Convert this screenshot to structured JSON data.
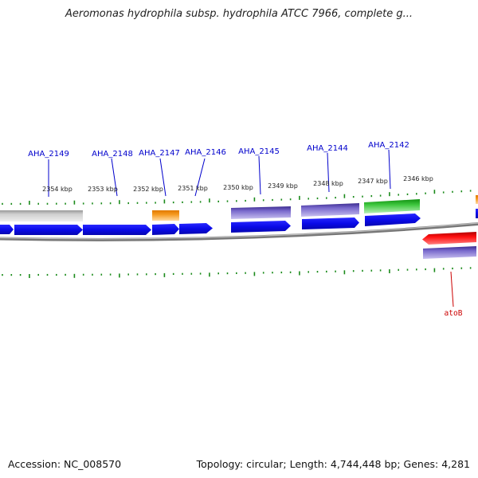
{
  "title": "Aeromonas hydrophila subsp. hydrophila ATCC 7966, complete g...",
  "footer": {
    "accession": "Accession: NC_008570",
    "summary": "Topology: circular; Length: 4,744,448 bp; Genes: 4,281"
  },
  "colors": {
    "cds": "#1010e0",
    "gray_feature": "#b8b8b8",
    "orange_feature": "#f0900a",
    "purple_feature": "#7060c8",
    "green_feature": "#30c030",
    "red_feature": "#e00000",
    "tick": "#1a8a1a",
    "backbone": "#888888",
    "label_blue": "#0000cc",
    "label_red": "#cc0000"
  },
  "scale_labels": [
    "2354 kbp",
    "2353 kbp",
    "2352 kbp",
    "2351 kbp",
    "2350 kbp",
    "2349 kbp",
    "2348 kbp",
    "2347 kbp",
    "2346 kbp"
  ],
  "gene_labels": [
    {
      "name": "AHA_2149",
      "color": "blue"
    },
    {
      "name": "AHA_2148",
      "color": "blue"
    },
    {
      "name": "AHA_2147",
      "color": "blue"
    },
    {
      "name": "AHA_2146",
      "color": "blue"
    },
    {
      "name": "AHA_2145",
      "color": "blue"
    },
    {
      "name": "AHA_2144",
      "color": "blue"
    },
    {
      "name": "AHA_2142",
      "color": "blue"
    },
    {
      "name": "atoB",
      "color": "red"
    }
  ]
}
